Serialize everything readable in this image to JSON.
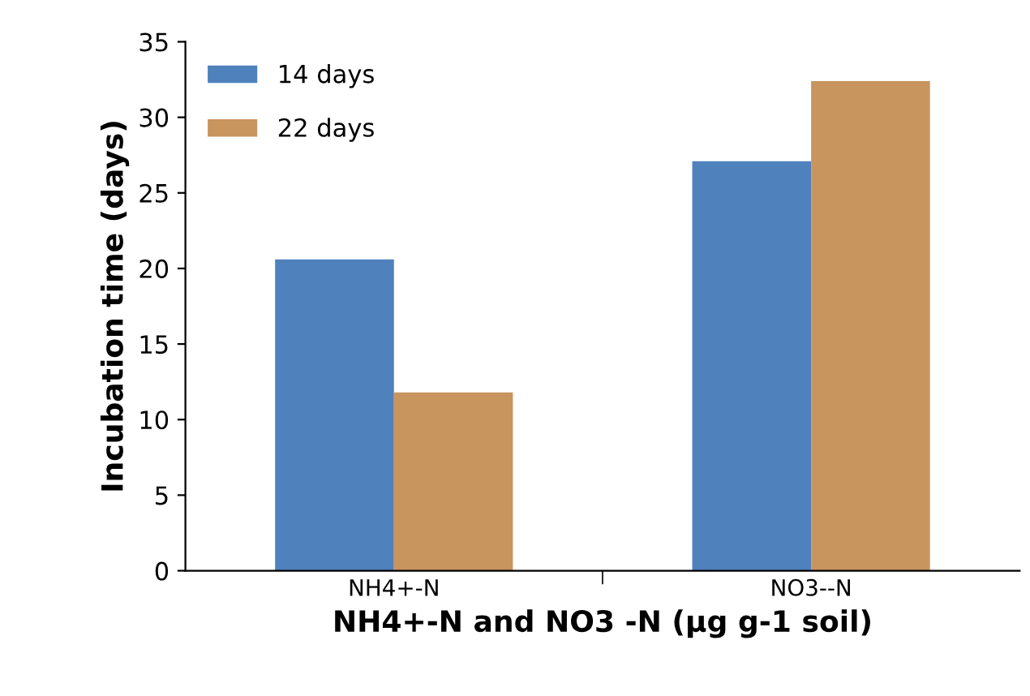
{
  "chart_data": {
    "type": "bar",
    "categories": [
      "NH4+-N",
      "NO3--N"
    ],
    "series": [
      {
        "name": "14 days",
        "color": "#4f81bd",
        "values": [
          20.6,
          27.1
        ]
      },
      {
        "name": "22 days",
        "color": "#c8955f",
        "values": [
          11.8,
          32.4
        ]
      }
    ],
    "xlabel": "NH4+-N and NO3 -N (µg g-1 soil)",
    "ylabel": "Incubation time (days)",
    "ylim": [
      0,
      35
    ],
    "yticks": [
      0,
      5,
      10,
      15,
      20,
      25,
      30,
      35
    ],
    "grid": false,
    "legend": "top left"
  }
}
